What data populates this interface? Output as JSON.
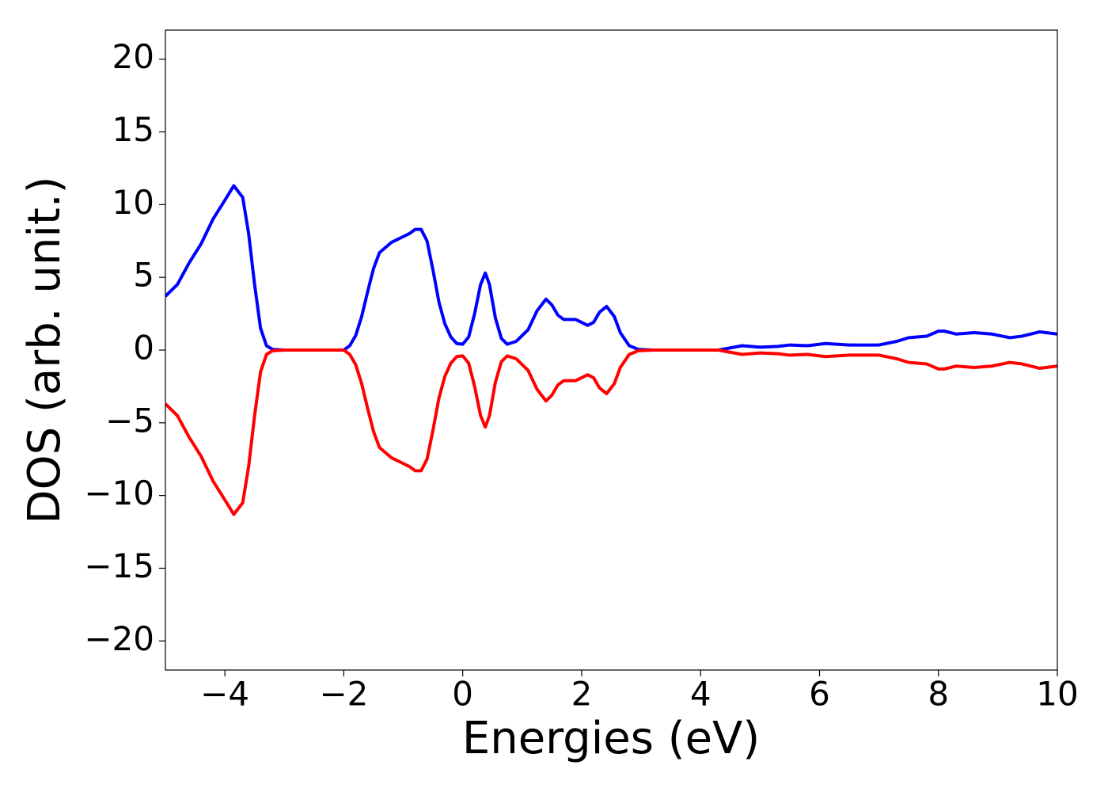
{
  "chart_data": {
    "type": "line",
    "xlabel": "Energies (eV)",
    "ylabel": "DOS (arb. unit.)",
    "xlim": [
      -5,
      10
    ],
    "ylim": [
      -22,
      22
    ],
    "xticks": [
      {
        "value": -4,
        "label": "−4"
      },
      {
        "value": -2,
        "label": "−2"
      },
      0,
      2,
      4,
      6,
      8,
      10
    ],
    "yticks": [
      {
        "value": -20,
        "label": "−20"
      },
      {
        "value": -15,
        "label": "−15"
      },
      {
        "value": -10,
        "label": "−10"
      },
      {
        "value": -5,
        "label": "−5"
      },
      0,
      5,
      10,
      15,
      20
    ],
    "grid": false,
    "x": [
      -5,
      -4.8,
      -4.6,
      -4.4,
      -4.2,
      -4.0,
      -3.85,
      -3.7,
      -3.6,
      -3.5,
      -3.4,
      -3.3,
      -3.2,
      -3.0,
      -2.0,
      -1.9,
      -1.8,
      -1.7,
      -1.6,
      -1.5,
      -1.4,
      -1.2,
      -1.0,
      -0.9,
      -0.8,
      -0.7,
      -0.6,
      -0.5,
      -0.4,
      -0.3,
      -0.2,
      -0.1,
      0,
      0.1,
      0.2,
      0.3,
      0.38,
      0.45,
      0.55,
      0.65,
      0.75,
      0.9,
      1.1,
      1.25,
      1.4,
      1.5,
      1.6,
      1.7,
      1.9,
      2.0,
      2.1,
      2.2,
      2.3,
      2.42,
      2.55,
      2.65,
      2.8,
      2.95,
      3.2,
      4.3,
      4.5,
      4.7,
      5.0,
      5.3,
      5.5,
      5.8,
      6.1,
      6.5,
      7.0,
      7.3,
      7.5,
      7.8,
      8.0,
      8.1,
      8.3,
      8.6,
      8.9,
      9.2,
      9.4,
      9.7,
      10
    ],
    "series": [
      {
        "color": "#0000ff",
        "values": [
          3.7,
          4.5,
          6,
          7.3,
          9,
          10.3,
          11.3,
          10.5,
          8,
          4.5,
          1.5,
          0.3,
          0.05,
          0,
          0,
          0.3,
          1,
          2.3,
          4,
          5.6,
          6.7,
          7.4,
          7.8,
          8.0,
          8.3,
          8.3,
          7.5,
          5.5,
          3.3,
          1.8,
          0.9,
          0.45,
          0.4,
          0.9,
          2.5,
          4.5,
          5.3,
          4.5,
          2.2,
          0.8,
          0.4,
          0.6,
          1.4,
          2.7,
          3.5,
          3.1,
          2.4,
          2.1,
          2.1,
          1.9,
          1.7,
          1.9,
          2.6,
          3.0,
          2.3,
          1.2,
          0.3,
          0.05,
          0,
          0,
          0.15,
          0.3,
          0.2,
          0.25,
          0.35,
          0.3,
          0.45,
          0.35,
          0.35,
          0.6,
          0.85,
          0.95,
          1.3,
          1.3,
          1.1,
          1.2,
          1.1,
          0.85,
          0.95,
          1.25,
          1.1
        ]
      },
      {
        "color": "#ff0000",
        "values": [
          -3.7,
          -4.5,
          -6,
          -7.3,
          -9,
          -10.3,
          -11.3,
          -10.5,
          -8,
          -4.5,
          -1.5,
          -0.3,
          -0.05,
          0,
          0,
          -0.3,
          -1,
          -2.3,
          -4,
          -5.6,
          -6.7,
          -7.4,
          -7.8,
          -8.0,
          -8.3,
          -8.3,
          -7.5,
          -5.5,
          -3.3,
          -1.8,
          -0.9,
          -0.45,
          -0.4,
          -0.9,
          -2.5,
          -4.5,
          -5.3,
          -4.5,
          -2.2,
          -0.8,
          -0.4,
          -0.6,
          -1.4,
          -2.7,
          -3.5,
          -3.1,
          -2.4,
          -2.1,
          -2.1,
          -1.9,
          -1.7,
          -1.9,
          -2.6,
          -3.0,
          -2.3,
          -1.2,
          -0.3,
          -0.05,
          0,
          0,
          -0.15,
          -0.3,
          -0.2,
          -0.25,
          -0.35,
          -0.3,
          -0.45,
          -0.35,
          -0.35,
          -0.6,
          -0.85,
          -0.95,
          -1.3,
          -1.3,
          -1.1,
          -1.2,
          -1.1,
          -0.85,
          -0.95,
          -1.25,
          -1.1
        ]
      }
    ]
  }
}
